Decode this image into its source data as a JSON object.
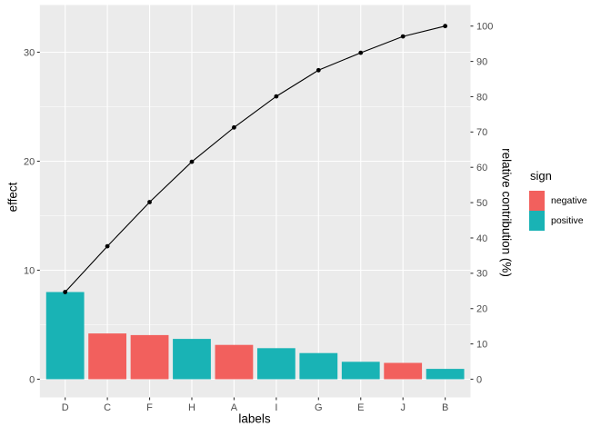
{
  "chart_data": {
    "type": "bar",
    "subtype": "pareto-with-cumulative-line",
    "title": "",
    "xlabel": "labels",
    "categories": [
      "D",
      "C",
      "F",
      "H",
      "A",
      "I",
      "G",
      "E",
      "J",
      "B"
    ],
    "series": [
      {
        "name": "effect",
        "type": "bar",
        "values": [
          8.0,
          4.2,
          4.05,
          3.7,
          3.15,
          2.85,
          2.4,
          1.6,
          1.5,
          0.95
        ],
        "signs": [
          "positive",
          "negative",
          "negative",
          "positive",
          "negative",
          "positive",
          "positive",
          "positive",
          "negative",
          "positive"
        ]
      },
      {
        "name": "relative contribution",
        "type": "line",
        "cumulative_pct": [
          24.7,
          37.7,
          50.2,
          61.6,
          71.3,
          80.1,
          87.5,
          92.4,
          97.1,
          100.0
        ],
        "color": "#000000"
      }
    ],
    "left_axis": {
      "label": "effect",
      "ticks": [
        0,
        10,
        20,
        30
      ],
      "minor_ticks": [
        5,
        15,
        25
      ],
      "range_top": 34.3
    },
    "right_axis": {
      "label": "relative contribution (%)",
      "ticks": [
        0,
        10,
        20,
        30,
        40,
        50,
        60,
        70,
        80,
        90,
        100
      ]
    },
    "legend": {
      "title": "sign",
      "position": "right",
      "entries": [
        {
          "label": "negative",
          "color": "#F2605D"
        },
        {
          "label": "positive",
          "color": "#19B3B5"
        }
      ]
    },
    "colors": {
      "negative": "#F2605D",
      "positive": "#19B3B5",
      "panel_background": "#EBEBEB",
      "grid": "#FFFFFF",
      "axis_text": "#4D4D4D",
      "tick_marks": "#333333",
      "line": "#000000"
    },
    "grid": "on"
  }
}
